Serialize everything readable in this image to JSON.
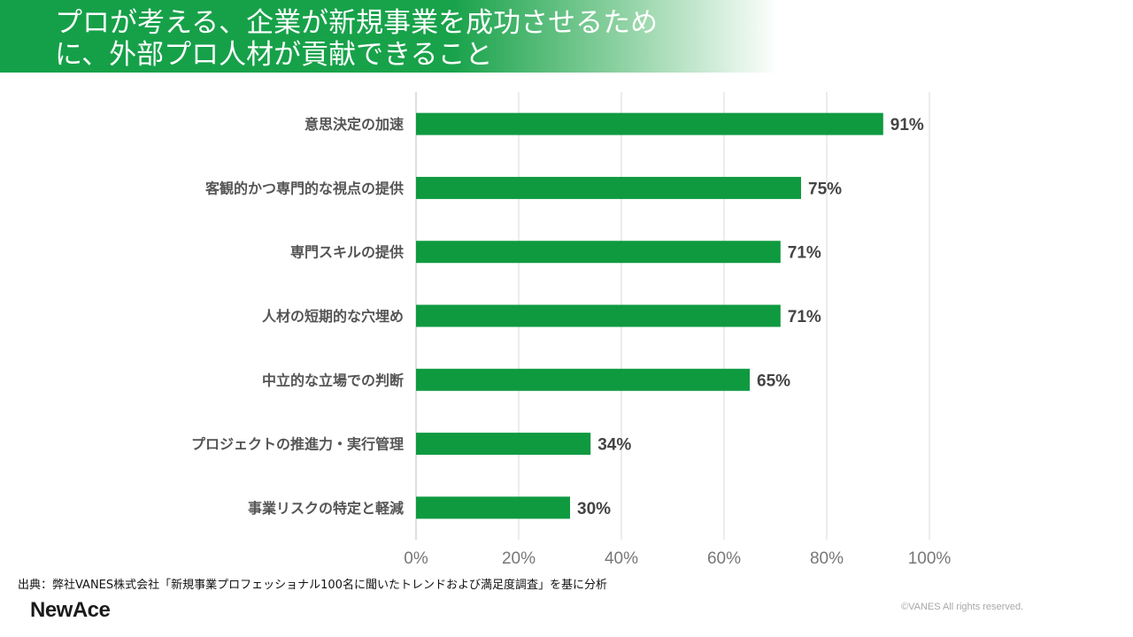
{
  "title": {
    "line1": "プロが考える、企業が新規事業を成功させるため",
    "line2": "に、外部プロ人材が貢献できること"
  },
  "colors": {
    "accent": "#179c47",
    "bar": "#0f9a40"
  },
  "chart_data": {
    "type": "bar",
    "orientation": "horizontal",
    "categories": [
      "意思決定の加速",
      "客観的かつ専門的な視点の提供",
      "専門スキルの提供",
      "人材の短期的な穴埋め",
      "中立的な立場での判断",
      "プロジェクトの推進力・実行管理",
      "事業リスクの特定と軽減"
    ],
    "values": [
      91,
      75,
      71,
      71,
      65,
      34,
      30
    ],
    "value_labels": [
      "91%",
      "75%",
      "71%",
      "71%",
      "65%",
      "34%",
      "30%"
    ],
    "xlim": [
      0,
      100
    ],
    "x_ticks": [
      "0%",
      "20%",
      "40%",
      "60%",
      "80%",
      "100%"
    ],
    "grid": true
  },
  "footer": {
    "source": "出典：弊社VANES株式会社「新規事業プロフェッショナル100名に聞いたトレンドおよび満足度調査」を基に分析",
    "logo": "NewAce",
    "copyright": "©VANES All rights reserved."
  }
}
